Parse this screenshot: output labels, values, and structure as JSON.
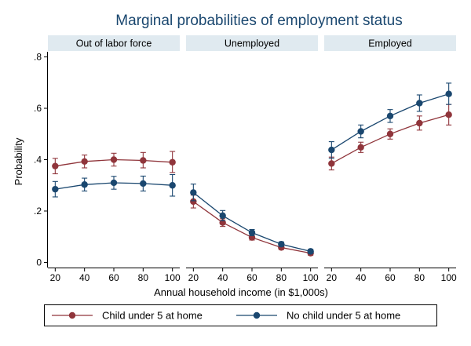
{
  "chart_data": {
    "type": "line",
    "title": "Marginal probabilities of employment status",
    "xlabel": "Annual household income (in $1,000s)",
    "ylabel": "Probability",
    "x": [
      20,
      40,
      60,
      80,
      100
    ],
    "xlim": [
      15,
      105
    ],
    "ylim": [
      -0.02,
      0.82
    ],
    "yticks": [
      0,
      0.2,
      0.4,
      0.6,
      0.8
    ],
    "ytick_labels": [
      "0",
      ".2",
      ".4",
      ".6",
      ".8"
    ],
    "xtick_labels": [
      "20",
      "40",
      "60",
      "80",
      "100"
    ],
    "grid": false,
    "legend_position": "bottom",
    "colors": {
      "child": "#90353b",
      "nochild": "#1a476f",
      "panel_header": "#e0eaf0",
      "axis": "#000000"
    },
    "legend": [
      {
        "key": "child",
        "label": "Child under 5 at home"
      },
      {
        "key": "nochild",
        "label": "No child under 5 at home"
      }
    ],
    "panels": [
      {
        "name": "out-of-labor-force",
        "label": "Out of labor force",
        "series": [
          {
            "key": "child",
            "values": [
              0.375,
              0.393,
              0.4,
              0.397,
              0.39
            ],
            "lower": [
              0.345,
              0.368,
              0.375,
              0.368,
              0.35
            ],
            "upper": [
              0.405,
              0.418,
              0.425,
              0.428,
              0.432
            ]
          },
          {
            "key": "nochild",
            "values": [
              0.285,
              0.303,
              0.31,
              0.307,
              0.3
            ],
            "lower": [
              0.255,
              0.278,
              0.285,
              0.278,
              0.258
            ],
            "upper": [
              0.315,
              0.328,
              0.335,
              0.336,
              0.342
            ]
          }
        ]
      },
      {
        "name": "unemployed",
        "label": "Unemployed",
        "series": [
          {
            "key": "child",
            "values": [
              0.237,
              0.155,
              0.097,
              0.058,
              0.036
            ],
            "lower": [
              0.212,
              0.14,
              0.087,
              0.05,
              0.028
            ],
            "upper": [
              0.262,
              0.17,
              0.107,
              0.066,
              0.044
            ]
          },
          {
            "key": "nochild",
            "values": [
              0.272,
              0.182,
              0.116,
              0.071,
              0.043
            ],
            "lower": [
              0.24,
              0.162,
              0.104,
              0.062,
              0.035
            ],
            "upper": [
              0.305,
              0.202,
              0.128,
              0.08,
              0.051
            ]
          }
        ]
      },
      {
        "name": "employed",
        "label": "Employed",
        "series": [
          {
            "key": "child",
            "values": [
              0.385,
              0.448,
              0.5,
              0.542,
              0.575
            ],
            "lower": [
              0.36,
              0.428,
              0.48,
              0.515,
              0.535
            ],
            "upper": [
              0.41,
              0.468,
              0.52,
              0.57,
              0.615
            ]
          },
          {
            "key": "nochild",
            "values": [
              0.438,
              0.51,
              0.57,
              0.62,
              0.656
            ],
            "lower": [
              0.405,
              0.485,
              0.545,
              0.588,
              0.615
            ],
            "upper": [
              0.47,
              0.535,
              0.595,
              0.652,
              0.698
            ]
          }
        ]
      }
    ]
  }
}
